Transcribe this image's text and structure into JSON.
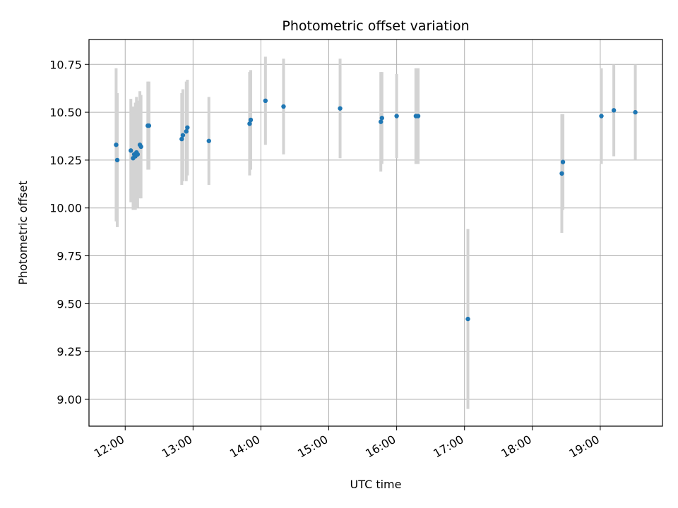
{
  "chart_data": {
    "type": "scatter",
    "title": "Photometric offset variation",
    "xlabel": "UTC time",
    "ylabel": "Photometric offset",
    "x_unit": "UTC hour of day",
    "xlim": [
      "11:28",
      "19:55"
    ],
    "ylim": [
      8.86,
      10.88
    ],
    "xticks": [
      "12:00",
      "13:00",
      "14:00",
      "15:00",
      "16:00",
      "17:00",
      "18:00",
      "19:00"
    ],
    "yticks": [
      "9.00",
      "9.25",
      "9.50",
      "9.75",
      "10.00",
      "10.25",
      "10.50",
      "10.75"
    ],
    "grid": true,
    "marker_color": "#1f77b4",
    "errorbar_color": "#d3d3d3",
    "points": [
      {
        "t": "11:52",
        "y": 10.33,
        "err": 0.4
      },
      {
        "t": "11:53",
        "y": 10.25,
        "err": 0.35
      },
      {
        "t": "12:05",
        "y": 10.3,
        "err": 0.27
      },
      {
        "t": "12:07",
        "y": 10.26,
        "err": 0.27
      },
      {
        "t": "12:08",
        "y": 10.28,
        "err": 0.25
      },
      {
        "t": "12:09",
        "y": 10.27,
        "err": 0.28
      },
      {
        "t": "12:10",
        "y": 10.29,
        "err": 0.29
      },
      {
        "t": "12:11",
        "y": 10.28,
        "err": 0.28
      },
      {
        "t": "12:13",
        "y": 10.33,
        "err": 0.28
      },
      {
        "t": "12:14",
        "y": 10.32,
        "err": 0.27
      },
      {
        "t": "12:20",
        "y": 10.43,
        "err": 0.23
      },
      {
        "t": "12:21",
        "y": 10.43,
        "err": 0.23
      },
      {
        "t": "12:50",
        "y": 10.36,
        "err": 0.24
      },
      {
        "t": "12:51",
        "y": 10.38,
        "err": 0.24
      },
      {
        "t": "12:54",
        "y": 10.4,
        "err": 0.26
      },
      {
        "t": "12:55",
        "y": 10.42,
        "err": 0.25
      },
      {
        "t": "13:14",
        "y": 10.35,
        "err": 0.23
      },
      {
        "t": "13:50",
        "y": 10.44,
        "err": 0.27
      },
      {
        "t": "13:51",
        "y": 10.46,
        "err": 0.26
      },
      {
        "t": "14:04",
        "y": 10.56,
        "err": 0.23
      },
      {
        "t": "14:20",
        "y": 10.53,
        "err": 0.25
      },
      {
        "t": "15:10",
        "y": 10.52,
        "err": 0.26
      },
      {
        "t": "15:46",
        "y": 10.45,
        "err": 0.26
      },
      {
        "t": "15:47",
        "y": 10.47,
        "err": 0.24
      },
      {
        "t": "16:00",
        "y": 10.48,
        "err": 0.22
      },
      {
        "t": "16:17",
        "y": 10.48,
        "err": 0.25
      },
      {
        "t": "16:19",
        "y": 10.48,
        "err": 0.25
      },
      {
        "t": "17:03",
        "y": 9.42,
        "err": 0.47
      },
      {
        "t": "18:26",
        "y": 10.18,
        "err": 0.31
      },
      {
        "t": "18:27",
        "y": 10.24,
        "err": 0.25
      },
      {
        "t": "19:01",
        "y": 10.48,
        "err": 0.25
      },
      {
        "t": "19:12",
        "y": 10.51,
        "err": 0.24
      },
      {
        "t": "19:31",
        "y": 10.5,
        "err": 0.25
      }
    ]
  }
}
